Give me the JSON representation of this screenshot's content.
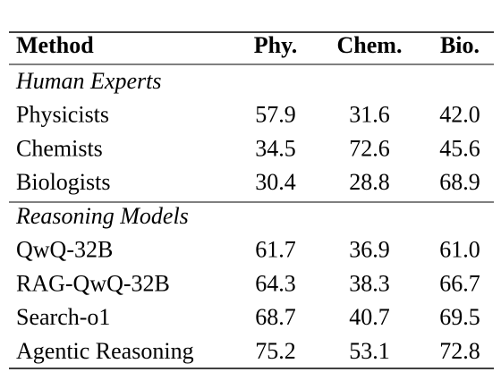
{
  "table": {
    "header": [
      "Method",
      "Phy.",
      "Chem.",
      "Bio."
    ],
    "groups": [
      {
        "label": "Human Experts",
        "rows": [
          [
            "Physicists",
            "57.9",
            "31.6",
            "42.0"
          ],
          [
            "Chemists",
            "34.5",
            "72.6",
            "45.6"
          ],
          [
            "Biologists",
            "30.4",
            "28.8",
            "68.9"
          ]
        ]
      },
      {
        "label": "Reasoning Models",
        "rows": [
          [
            "QwQ-32B",
            "61.7",
            "36.9",
            "61.0"
          ],
          [
            "RAG-QwQ-32B",
            "64.3",
            "38.3",
            "66.7"
          ],
          [
            "Search-o1",
            "68.7",
            "40.7",
            "69.5"
          ],
          [
            "Agentic Reasoning",
            "75.2",
            "53.1",
            "72.8"
          ]
        ]
      }
    ]
  }
}
